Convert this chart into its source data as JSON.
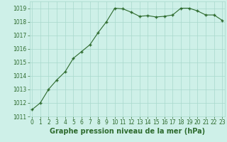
{
  "x": [
    0,
    1,
    2,
    3,
    4,
    5,
    6,
    7,
    8,
    9,
    10,
    11,
    12,
    13,
    14,
    15,
    16,
    17,
    18,
    19,
    20,
    21,
    22,
    23
  ],
  "y": [
    1011.5,
    1012.0,
    1013.0,
    1013.7,
    1014.3,
    1015.3,
    1015.8,
    1016.3,
    1017.2,
    1018.0,
    1019.0,
    1018.95,
    1018.7,
    1018.4,
    1018.45,
    1018.35,
    1018.4,
    1018.5,
    1019.0,
    1019.0,
    1018.8,
    1018.5,
    1018.5,
    1018.1
  ],
  "line_color": "#2d6a2d",
  "marker_color": "#2d6a2d",
  "bg_color": "#cef0e8",
  "grid_color": "#a8d8cc",
  "xlabel": "Graphe pression niveau de la mer (hPa)",
  "xlabel_fontsize": 7,
  "ylim": [
    1011,
    1019.5
  ],
  "yticks": [
    1011,
    1012,
    1013,
    1014,
    1015,
    1016,
    1017,
    1018,
    1019
  ],
  "xticks": [
    0,
    1,
    2,
    3,
    4,
    5,
    6,
    7,
    8,
    9,
    10,
    11,
    12,
    13,
    14,
    15,
    16,
    17,
    18,
    19,
    20,
    21,
    22,
    23
  ],
  "tick_fontsize": 5.5,
  "marker_size": 3.0,
  "line_width": 0.8
}
